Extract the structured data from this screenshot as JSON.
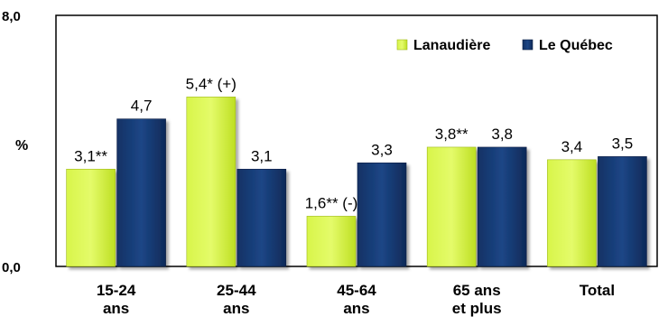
{
  "chart_data": {
    "type": "bar",
    "categories": [
      [
        "15-24",
        "ans"
      ],
      [
        "25-44",
        "ans"
      ],
      [
        "45-64",
        "ans"
      ],
      [
        "65 ans",
        "et plus"
      ],
      [
        "Total"
      ]
    ],
    "series": [
      {
        "name": "Lanaudière",
        "color": "#ccee33",
        "values": [
          3.1,
          5.4,
          1.6,
          3.8,
          3.4
        ],
        "labels": [
          "3,1**",
          "5,4* (+)",
          "1,6** (-)",
          "3,8**",
          "3,4"
        ]
      },
      {
        "name": "Le Québec",
        "color": "#15386e",
        "values": [
          4.7,
          3.1,
          3.3,
          3.8,
          3.5
        ],
        "labels": [
          "4,7",
          "3,1",
          "3,3",
          "3,8",
          "3,5"
        ]
      }
    ],
    "ylabel": "%",
    "ylim": [
      0,
      8
    ],
    "ytick_labels": [
      "0,0",
      "8,0"
    ],
    "grid": false,
    "legend_position": "top-right"
  }
}
